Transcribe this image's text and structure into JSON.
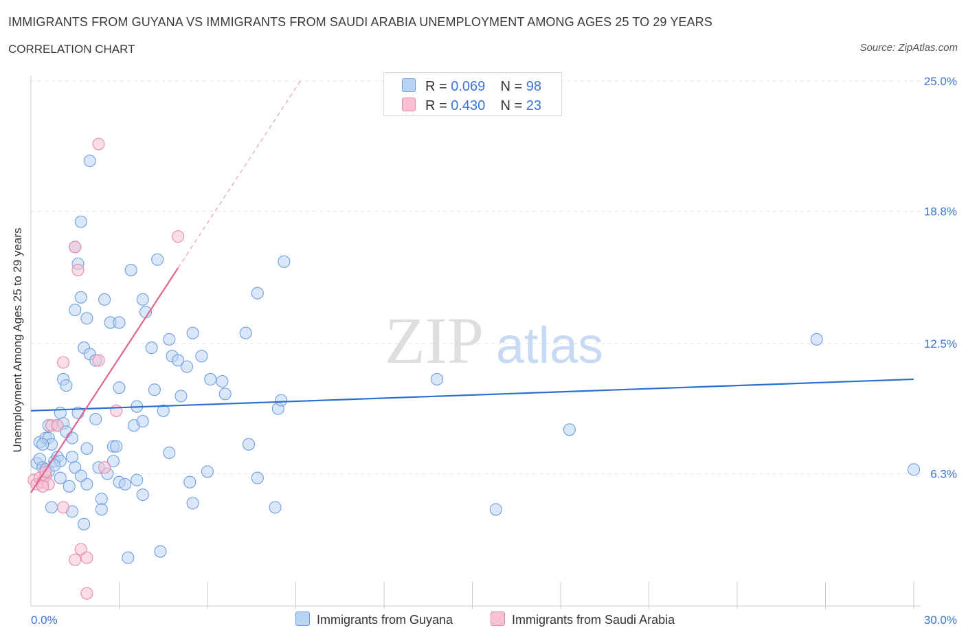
{
  "title": "IMMIGRANTS FROM GUYANA VS IMMIGRANTS FROM SAUDI ARABIA UNEMPLOYMENT AMONG AGES 25 TO 29 YEARS",
  "subtitle": "CORRELATION CHART",
  "source": "Source: ZipAtlas.com",
  "watermark": {
    "zip": "ZIP",
    "atlas": "atlas"
  },
  "legend": {
    "guyana": {
      "r_label": "R = ",
      "r": "0.069",
      "n_label": "N = ",
      "n": "98"
    },
    "saudi": {
      "r_label": "R = ",
      "r": "0.430",
      "n_label": "N = ",
      "n": "23"
    }
  },
  "colors": {
    "guyana_fill": "#b9d3f4",
    "guyana_stroke": "#6d9ee0",
    "guyana_line": "#2a6fd1",
    "saudi_fill": "#f7c1d2",
    "saudi_stroke": "#e889a8",
    "saudi_line": "#e2628f",
    "tick_label": "#3b73d6"
  },
  "chart_data": {
    "type": "scatter",
    "title": "IMMIGRANTS FROM GUYANA VS IMMIGRANTS FROM SAUDI ARABIA UNEMPLOYMENT AMONG AGES 25 TO 29 YEARS",
    "xlabel": "",
    "ylabel": "Unemployment Among Ages 25 to 29 years",
    "xlim": [
      0,
      30
    ],
    "ylim": [
      0,
      25
    ],
    "x_tick_labels": [
      "0.0%",
      "30.0%"
    ],
    "y_ticks": [
      6.3,
      12.5,
      18.8,
      25.0
    ],
    "y_tick_labels": [
      "6.3%",
      "12.5%",
      "18.8%",
      "25.0%"
    ],
    "grid": true,
    "series": [
      {
        "name": "Immigrants from Guyana",
        "R": 0.069,
        "N": 98,
        "trend": {
          "x": [
            0,
            30
          ],
          "y": [
            9.3,
            10.8
          ],
          "style": "solid"
        },
        "points": [
          [
            0.2,
            6.8
          ],
          [
            0.3,
            7.0
          ],
          [
            0.4,
            6.6
          ],
          [
            0.5,
            6.5
          ],
          [
            0.3,
            7.8
          ],
          [
            0.5,
            8.0
          ],
          [
            0.6,
            8.0
          ],
          [
            0.7,
            7.7
          ],
          [
            0.6,
            6.4
          ],
          [
            0.8,
            6.9
          ],
          [
            0.9,
            7.1
          ],
          [
            1.0,
            6.9
          ],
          [
            0.6,
            8.6
          ],
          [
            0.9,
            8.6
          ],
          [
            1.0,
            9.2
          ],
          [
            1.1,
            8.7
          ],
          [
            1.2,
            8.3
          ],
          [
            0.7,
            4.7
          ],
          [
            1.1,
            10.8
          ],
          [
            1.2,
            10.5
          ],
          [
            1.4,
            7.1
          ],
          [
            1.4,
            8.0
          ],
          [
            1.3,
            5.7
          ],
          [
            1.4,
            4.5
          ],
          [
            1.5,
            14.1
          ],
          [
            1.6,
            16.3
          ],
          [
            1.7,
            18.3
          ],
          [
            1.7,
            14.7
          ],
          [
            1.8,
            12.3
          ],
          [
            1.9,
            13.7
          ],
          [
            1.6,
            9.2
          ],
          [
            1.8,
            3.9
          ],
          [
            1.9,
            5.8
          ],
          [
            1.5,
            17.1
          ],
          [
            2.0,
            12.0
          ],
          [
            2.2,
            11.7
          ],
          [
            2.2,
            8.9
          ],
          [
            2.3,
            6.6
          ],
          [
            2.4,
            5.1
          ],
          [
            2.5,
            14.6
          ],
          [
            2.6,
            6.3
          ],
          [
            2.7,
            13.5
          ],
          [
            2.8,
            7.6
          ],
          [
            2.9,
            7.6
          ],
          [
            3.0,
            10.4
          ],
          [
            3.0,
            13.5
          ],
          [
            3.0,
            5.9
          ],
          [
            3.2,
            5.8
          ],
          [
            3.4,
            16.0
          ],
          [
            3.5,
            8.6
          ],
          [
            3.6,
            9.5
          ],
          [
            3.8,
            5.3
          ],
          [
            3.8,
            14.6
          ],
          [
            3.9,
            14.0
          ],
          [
            3.8,
            8.8
          ],
          [
            4.1,
            12.3
          ],
          [
            4.2,
            10.3
          ],
          [
            4.3,
            16.5
          ],
          [
            4.5,
            9.3
          ],
          [
            4.7,
            7.3
          ],
          [
            4.7,
            12.7
          ],
          [
            4.8,
            11.9
          ],
          [
            5.0,
            11.7
          ],
          [
            5.1,
            10.0
          ],
          [
            5.3,
            11.4
          ],
          [
            5.4,
            5.9
          ],
          [
            5.5,
            4.9
          ],
          [
            5.5,
            13.0
          ],
          [
            5.8,
            11.9
          ],
          [
            6.1,
            10.8
          ],
          [
            6.5,
            10.7
          ],
          [
            6.6,
            10.1
          ],
          [
            7.3,
            13.0
          ],
          [
            7.4,
            7.7
          ],
          [
            7.7,
            6.1
          ],
          [
            7.7,
            14.9
          ],
          [
            8.3,
            4.7
          ],
          [
            8.4,
            9.4
          ],
          [
            8.5,
            9.8
          ],
          [
            8.6,
            16.4
          ],
          [
            13.8,
            10.8
          ],
          [
            15.8,
            4.6
          ],
          [
            18.3,
            8.4
          ],
          [
            26.7,
            12.7
          ],
          [
            30.0,
            6.5
          ],
          [
            1.5,
            6.6
          ],
          [
            2.0,
            21.2
          ],
          [
            2.4,
            4.6
          ],
          [
            2.8,
            6.9
          ],
          [
            3.3,
            2.3
          ],
          [
            1.0,
            6.1
          ],
          [
            0.4,
            7.7
          ],
          [
            1.9,
            7.5
          ],
          [
            4.4,
            2.6
          ],
          [
            1.7,
            6.2
          ],
          [
            0.8,
            6.7
          ],
          [
            3.6,
            6.0
          ],
          [
            6.0,
            6.4
          ]
        ]
      },
      {
        "name": "Immigrants from Saudi Arabia",
        "R": 0.43,
        "N": 23,
        "trend": {
          "x": [
            0,
            5.0
          ],
          "y": [
            5.4,
            16.1
          ],
          "style": "solid",
          "dashed_extension": {
            "x": [
              5.0,
              9.2
            ],
            "y": [
              16.1,
              25.1
            ]
          }
        },
        "points": [
          [
            0.1,
            6.0
          ],
          [
            0.2,
            5.8
          ],
          [
            0.3,
            6.1
          ],
          [
            0.4,
            5.9
          ],
          [
            0.5,
            6.2
          ],
          [
            0.6,
            5.8
          ],
          [
            0.5,
            6.4
          ],
          [
            0.7,
            8.6
          ],
          [
            0.9,
            8.6
          ],
          [
            1.1,
            11.6
          ],
          [
            1.1,
            4.7
          ],
          [
            1.5,
            17.1
          ],
          [
            1.6,
            16.0
          ],
          [
            1.5,
            2.2
          ],
          [
            1.7,
            2.7
          ],
          [
            1.9,
            2.3
          ],
          [
            1.9,
            0.6
          ],
          [
            2.3,
            11.7
          ],
          [
            2.3,
            22.0
          ],
          [
            2.5,
            6.6
          ],
          [
            2.9,
            9.3
          ],
          [
            5.0,
            17.6
          ],
          [
            0.4,
            5.7
          ]
        ]
      }
    ]
  },
  "bottom_legend": {
    "guyana": "Immigrants from Guyana",
    "saudi": "Immigrants from Saudi Arabia"
  }
}
